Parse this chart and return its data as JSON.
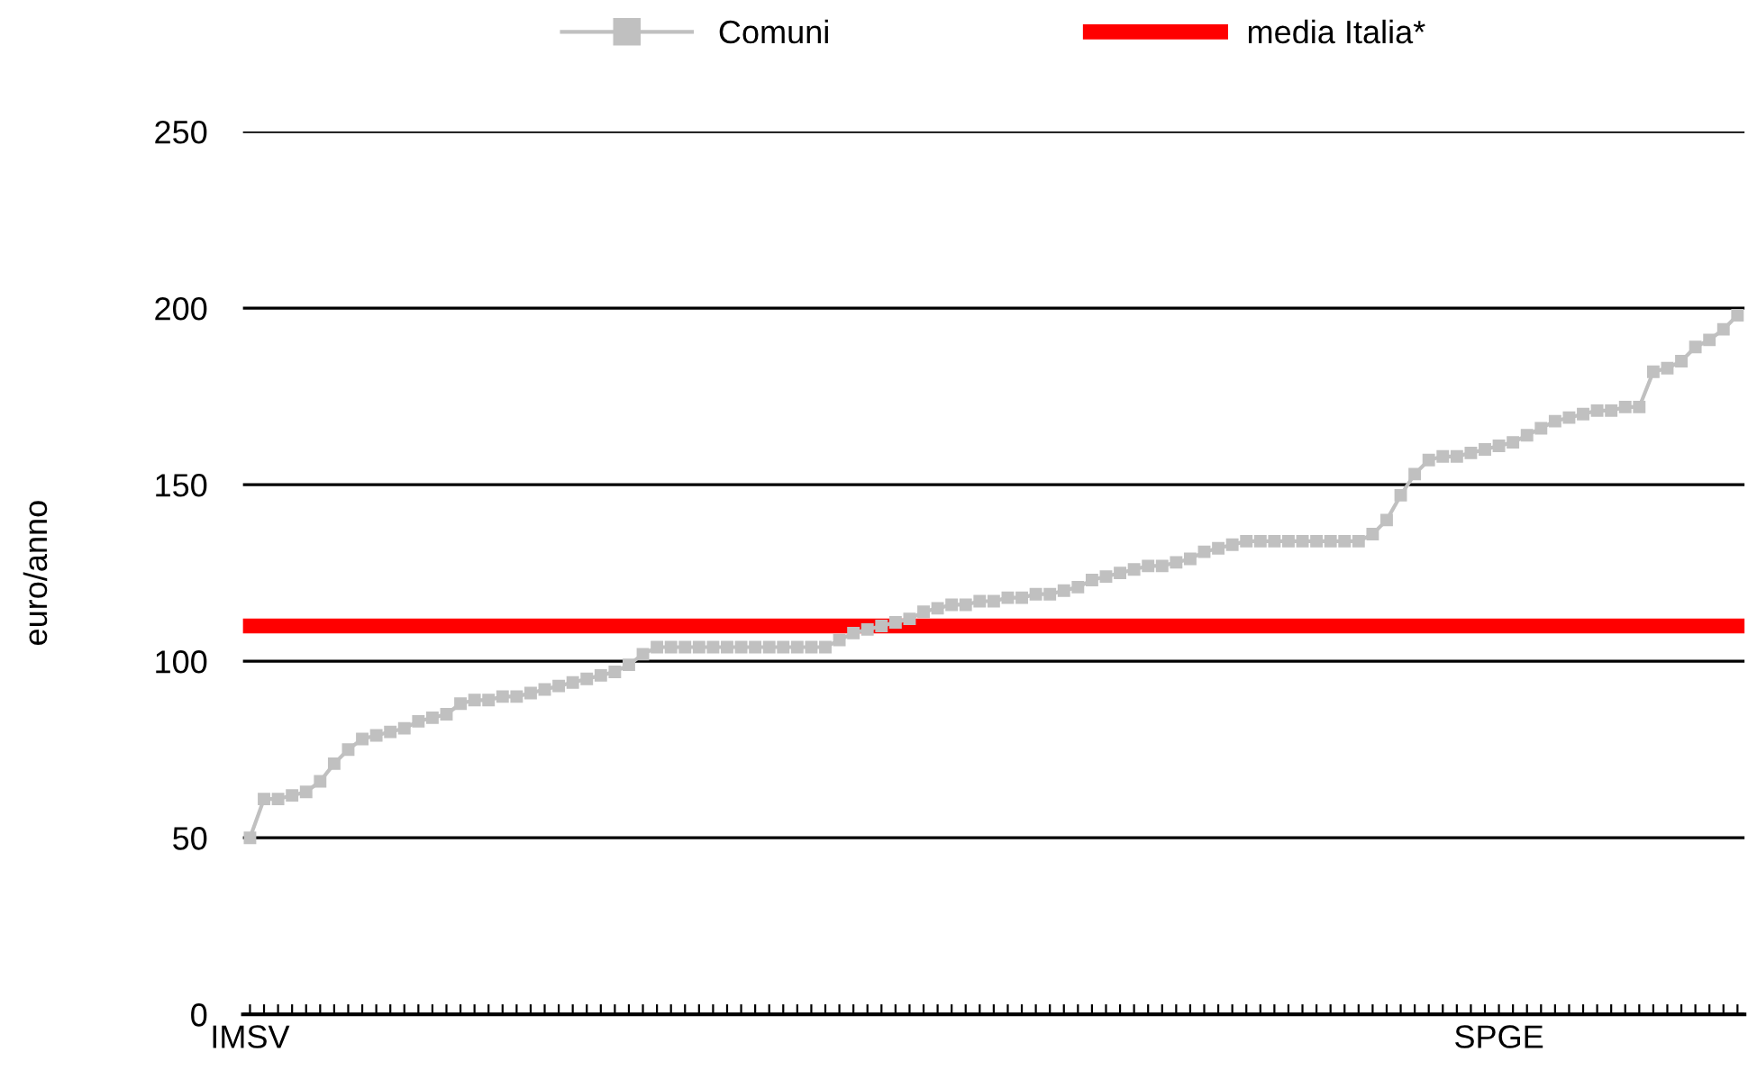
{
  "chart_data": {
    "type": "line",
    "ylabel": "euro/anno",
    "categories": [
      "IMSV",
      null,
      null,
      null,
      null,
      null,
      null,
      null,
      null,
      null,
      null,
      null,
      null,
      null,
      null,
      null,
      null,
      null,
      null,
      null,
      null,
      null,
      null,
      null,
      null,
      null,
      null,
      null,
      null,
      null,
      null,
      null,
      null,
      null,
      null,
      null,
      null,
      null,
      null,
      null,
      null,
      null,
      null,
      null,
      null,
      null,
      null,
      null,
      null,
      null,
      null,
      null,
      null,
      null,
      null,
      null,
      null,
      null,
      null,
      null,
      null,
      null,
      null,
      null,
      null,
      null,
      null,
      null,
      null,
      null,
      null,
      null,
      null,
      null,
      null,
      null,
      null,
      null,
      null,
      null,
      null,
      null,
      null,
      null,
      null,
      null,
      null,
      null,
      null,
      "SPGE",
      null,
      null,
      null,
      null,
      null,
      null,
      null,
      null,
      null,
      null,
      null,
      null,
      null,
      null,
      null,
      null,
      null
    ],
    "series": [
      {
        "name": "Comuni",
        "color": "#c0c0c0",
        "values": [
          50,
          61,
          61,
          62,
          63,
          66,
          71,
          75,
          78,
          79,
          80,
          81,
          83,
          84,
          85,
          88,
          89,
          89,
          90,
          90,
          91,
          92,
          93,
          94,
          95,
          96,
          97,
          99,
          102,
          104,
          104,
          104,
          104,
          104,
          104,
          104,
          104,
          104,
          104,
          104,
          104,
          104,
          106,
          108,
          109,
          110,
          111,
          112,
          114,
          115,
          116,
          116,
          117,
          117,
          118,
          118,
          119,
          119,
          120,
          121,
          123,
          124,
          125,
          126,
          127,
          127,
          128,
          129,
          131,
          132,
          133,
          134,
          134,
          134,
          134,
          134,
          134,
          134,
          134,
          134,
          136,
          140,
          147,
          153,
          157,
          158,
          158,
          159,
          160,
          161,
          162,
          164,
          166,
          168,
          169,
          170,
          171,
          171,
          172,
          172,
          182,
          183,
          185,
          189,
          191,
          194,
          198
        ]
      }
    ],
    "ref_lines": [
      {
        "axis": "y",
        "value": 110,
        "label": "media Italia*",
        "color": "#ff0000"
      }
    ],
    "ylim": [
      0,
      250
    ],
    "yticks": [
      0,
      50,
      100,
      150,
      200,
      250
    ],
    "grid": "y",
    "legend": "top",
    "marker": "square",
    "line_style": "solid"
  }
}
